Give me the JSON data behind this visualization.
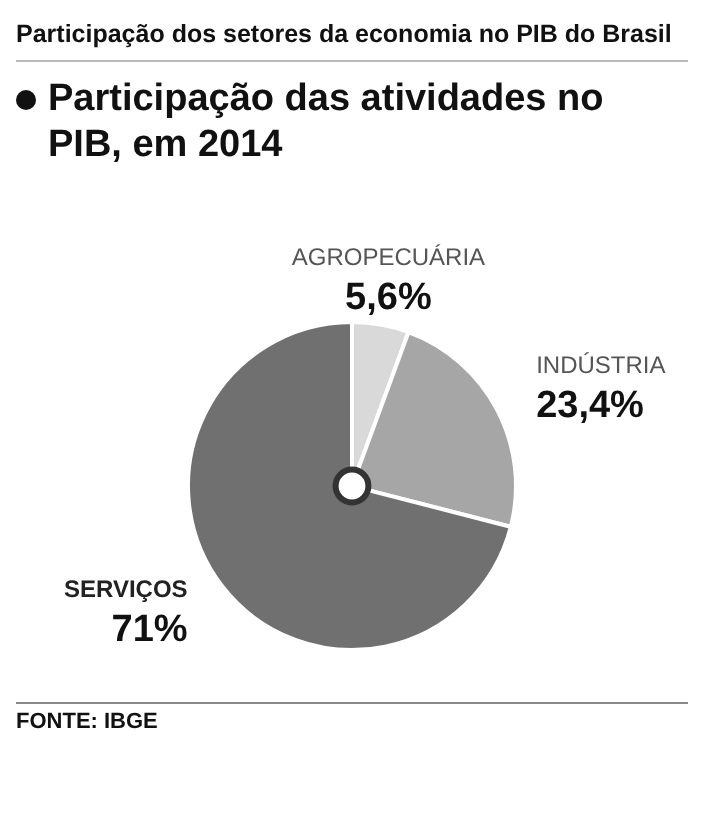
{
  "chart_data": {
    "type": "pie",
    "title": "Participação dos setores da economia no PIB do Brasil",
    "subtitle": "Participação das atividades no PIB, em 2014",
    "categories": [
      "AGROPECUÁRIA",
      "INDÚSTRIA",
      "SERVIÇOS"
    ],
    "values": [
      5.6,
      23.4,
      71
    ],
    "value_labels": [
      "5,6%",
      "23,4%",
      "71%"
    ],
    "colors": [
      "#d9d9d9",
      "#a6a6a6",
      "#707070"
    ],
    "legend": false,
    "annotations": [
      "FONTE: IBGE"
    ]
  }
}
